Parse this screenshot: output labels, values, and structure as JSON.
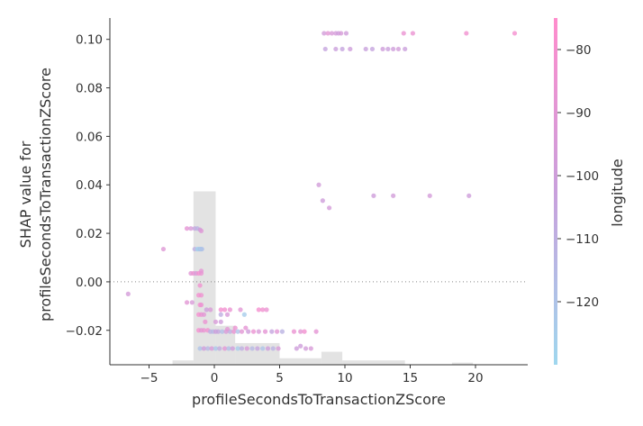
{
  "chart_data": {
    "type": "scatter",
    "xlabel": "profileSecondsToTransactionZScore",
    "ylabel_lines": [
      "SHAP value for",
      "profileSecondsToTransactionZScore"
    ],
    "xlim": [
      -8,
      24
    ],
    "ylim": [
      -0.0342,
      0.1088
    ],
    "x_ticks": [
      -5,
      0,
      5,
      10,
      15,
      20
    ],
    "x_tick_labels": [
      "−5",
      "0",
      "5",
      "10",
      "15",
      "20"
    ],
    "y_ticks": [
      -0.02,
      0.0,
      0.02,
      0.04,
      0.06,
      0.08,
      0.1
    ],
    "y_tick_labels": [
      "−0.02",
      "0.00",
      "0.02",
      "0.04",
      "0.06",
      "0.08",
      "0.10"
    ],
    "reference_line_y": 0.0,
    "colorbar": {
      "label": "longitude",
      "range": [
        -130,
        -75
      ],
      "ticks": [
        -80,
        -90,
        -100,
        -110,
        -120
      ],
      "tick_labels": [
        "−80",
        "−90",
        "−100",
        "−110",
        "−120"
      ],
      "color_low": "#9fd7ee",
      "color_mid": "#c9a0dc",
      "color_high": "#ff8ccc"
    },
    "histogram": {
      "bins": [
        {
          "x0": -3.2,
          "x1": -1.6,
          "count": 2
        },
        {
          "x0": -1.6,
          "x1": 0.1,
          "count": 80
        },
        {
          "x0": 0.1,
          "x1": 1.6,
          "count": 18
        },
        {
          "x0": 1.6,
          "x1": 5.0,
          "count": 10
        },
        {
          "x0": 5.0,
          "x1": 8.2,
          "count": 3
        },
        {
          "x0": 8.2,
          "x1": 9.8,
          "count": 6
        },
        {
          "x0": 9.8,
          "x1": 14.6,
          "count": 2
        },
        {
          "x0": 18.2,
          "x1": 19.8,
          "count": 1
        }
      ]
    },
    "points": [
      {
        "x": -6.6,
        "y": -0.005,
        "lon": -97
      },
      {
        "x": -3.9,
        "y": 0.0135,
        "lon": -92
      },
      {
        "x": -2.1,
        "y": 0.022,
        "lon": -88
      },
      {
        "x": -1.8,
        "y": 0.022,
        "lon": -95
      },
      {
        "x": -1.5,
        "y": 0.022,
        "lon": -105
      },
      {
        "x": -1.3,
        "y": 0.022,
        "lon": -112
      },
      {
        "x": -1.1,
        "y": 0.0215,
        "lon": -100
      },
      {
        "x": -1.0,
        "y": 0.021,
        "lon": -92
      },
      {
        "x": -1.5,
        "y": 0.0135,
        "lon": -110
      },
      {
        "x": -1.3,
        "y": 0.0135,
        "lon": -125
      },
      {
        "x": -1.2,
        "y": 0.0135,
        "lon": -128
      },
      {
        "x": -1.1,
        "y": 0.0135,
        "lon": -115
      },
      {
        "x": -1.05,
        "y": 0.0135,
        "lon": -122
      },
      {
        "x": -1.0,
        "y": 0.0135,
        "lon": -127
      },
      {
        "x": -0.95,
        "y": 0.0135,
        "lon": -118
      },
      {
        "x": -1.8,
        "y": 0.0035,
        "lon": -90
      },
      {
        "x": -1.6,
        "y": 0.0035,
        "lon": -85
      },
      {
        "x": -1.4,
        "y": 0.0035,
        "lon": -95
      },
      {
        "x": -1.2,
        "y": 0.0035,
        "lon": -80
      },
      {
        "x": -1.0,
        "y": 0.0035,
        "lon": -85
      },
      {
        "x": -1.0,
        "y": 0.0045,
        "lon": -88
      },
      {
        "x": -1.1,
        "y": -0.0015,
        "lon": -82
      },
      {
        "x": -1.0,
        "y": -0.0055,
        "lon": -84
      },
      {
        "x": -1.2,
        "y": -0.0055,
        "lon": -81
      },
      {
        "x": -2.1,
        "y": -0.0085,
        "lon": -90
      },
      {
        "x": -1.7,
        "y": -0.0085,
        "lon": -95
      },
      {
        "x": -1.1,
        "y": -0.0095,
        "lon": -80
      },
      {
        "x": -1.0,
        "y": -0.0095,
        "lon": -85
      },
      {
        "x": -0.6,
        "y": -0.0115,
        "lon": -100
      },
      {
        "x": -0.3,
        "y": -0.0115,
        "lon": -94
      },
      {
        "x": 0.5,
        "y": -0.0115,
        "lon": -80
      },
      {
        "x": 0.8,
        "y": -0.0115,
        "lon": -82
      },
      {
        "x": 1.2,
        "y": -0.0115,
        "lon": -85
      },
      {
        "x": 2.0,
        "y": -0.0115,
        "lon": -90
      },
      {
        "x": 3.4,
        "y": -0.0115,
        "lon": -80
      },
      {
        "x": 3.7,
        "y": -0.0115,
        "lon": -82
      },
      {
        "x": 4.0,
        "y": -0.0115,
        "lon": -85
      },
      {
        "x": -1.2,
        "y": -0.0135,
        "lon": -80
      },
      {
        "x": -1.0,
        "y": -0.0135,
        "lon": -85
      },
      {
        "x": -0.8,
        "y": -0.0135,
        "lon": -90
      },
      {
        "x": 0.5,
        "y": -0.0135,
        "lon": -110
      },
      {
        "x": 1.0,
        "y": -0.0135,
        "lon": -95
      },
      {
        "x": 2.3,
        "y": -0.0135,
        "lon": -125
      },
      {
        "x": -0.7,
        "y": -0.0165,
        "lon": -85
      },
      {
        "x": 0.1,
        "y": -0.0165,
        "lon": -95
      },
      {
        "x": 0.5,
        "y": -0.0165,
        "lon": -100
      },
      {
        "x": -1.2,
        "y": -0.02,
        "lon": -80
      },
      {
        "x": -1.0,
        "y": -0.02,
        "lon": -90
      },
      {
        "x": -0.8,
        "y": -0.02,
        "lon": -85
      },
      {
        "x": -0.5,
        "y": -0.02,
        "lon": -82
      },
      {
        "x": -0.3,
        "y": -0.0205,
        "lon": -110
      },
      {
        "x": -0.1,
        "y": -0.0205,
        "lon": -115
      },
      {
        "x": 0.1,
        "y": -0.0205,
        "lon": -100
      },
      {
        "x": 0.3,
        "y": -0.0205,
        "lon": -105
      },
      {
        "x": 0.6,
        "y": -0.0205,
        "lon": -118
      },
      {
        "x": 0.9,
        "y": -0.0205,
        "lon": -95
      },
      {
        "x": 1.2,
        "y": -0.0205,
        "lon": -110
      },
      {
        "x": 1.5,
        "y": -0.0205,
        "lon": -85
      },
      {
        "x": 1.8,
        "y": -0.0205,
        "lon": -120
      },
      {
        "x": 2.1,
        "y": -0.0205,
        "lon": -90
      },
      {
        "x": 2.6,
        "y": -0.0205,
        "lon": -100
      },
      {
        "x": 3.0,
        "y": -0.0205,
        "lon": -85
      },
      {
        "x": 3.4,
        "y": -0.0205,
        "lon": -95
      },
      {
        "x": 3.9,
        "y": -0.0205,
        "lon": -88
      },
      {
        "x": 4.4,
        "y": -0.0205,
        "lon": -105
      },
      {
        "x": 4.8,
        "y": -0.0205,
        "lon": -90
      },
      {
        "x": 5.2,
        "y": -0.0205,
        "lon": -112
      },
      {
        "x": 6.1,
        "y": -0.0205,
        "lon": -85
      },
      {
        "x": 6.6,
        "y": -0.0205,
        "lon": -90
      },
      {
        "x": 6.9,
        "y": -0.0205,
        "lon": -82
      },
      {
        "x": 7.8,
        "y": -0.0205,
        "lon": -88
      },
      {
        "x": 1.6,
        "y": -0.019,
        "lon": -85
      },
      {
        "x": 2.4,
        "y": -0.019,
        "lon": -88
      },
      {
        "x": 1.0,
        "y": -0.0195,
        "lon": -90
      },
      {
        "x": -1.1,
        "y": -0.0275,
        "lon": -120
      },
      {
        "x": -0.8,
        "y": -0.0275,
        "lon": -100
      },
      {
        "x": -0.5,
        "y": -0.0275,
        "lon": -115
      },
      {
        "x": -0.2,
        "y": -0.0275,
        "lon": -95
      },
      {
        "x": 0.1,
        "y": -0.0275,
        "lon": -122
      },
      {
        "x": 0.4,
        "y": -0.0275,
        "lon": -108
      },
      {
        "x": 0.8,
        "y": -0.0275,
        "lon": -90
      },
      {
        "x": 1.1,
        "y": -0.0275,
        "lon": -118
      },
      {
        "x": 1.4,
        "y": -0.0275,
        "lon": -100
      },
      {
        "x": 1.8,
        "y": -0.0275,
        "lon": -125
      },
      {
        "x": 2.1,
        "y": -0.0275,
        "lon": -110
      },
      {
        "x": 2.5,
        "y": -0.0275,
        "lon": -95
      },
      {
        "x": 2.9,
        "y": -0.0275,
        "lon": -115
      },
      {
        "x": 3.3,
        "y": -0.0275,
        "lon": -105
      },
      {
        "x": 3.7,
        "y": -0.0275,
        "lon": -120
      },
      {
        "x": 4.1,
        "y": -0.0275,
        "lon": -100
      },
      {
        "x": 4.5,
        "y": -0.0275,
        "lon": -112
      },
      {
        "x": 4.9,
        "y": -0.0275,
        "lon": -95
      },
      {
        "x": 6.3,
        "y": -0.0275,
        "lon": -100
      },
      {
        "x": 7.0,
        "y": -0.0275,
        "lon": -98
      },
      {
        "x": 7.4,
        "y": -0.0275,
        "lon": -95
      },
      {
        "x": 6.6,
        "y": -0.0265,
        "lon": -100
      },
      {
        "x": 8.0,
        "y": 0.04,
        "lon": -98
      },
      {
        "x": 8.3,
        "y": 0.0335,
        "lon": -100
      },
      {
        "x": 8.8,
        "y": 0.0305,
        "lon": -97
      },
      {
        "x": 12.2,
        "y": 0.0355,
        "lon": -100
      },
      {
        "x": 13.7,
        "y": 0.0355,
        "lon": -98
      },
      {
        "x": 16.5,
        "y": 0.0355,
        "lon": -97
      },
      {
        "x": 19.5,
        "y": 0.0355,
        "lon": -100
      },
      {
        "x": 8.4,
        "y": 0.1025,
        "lon": -98
      },
      {
        "x": 8.7,
        "y": 0.1025,
        "lon": -90
      },
      {
        "x": 9.0,
        "y": 0.1025,
        "lon": -95
      },
      {
        "x": 9.3,
        "y": 0.1025,
        "lon": -97
      },
      {
        "x": 9.5,
        "y": 0.1025,
        "lon": -100
      },
      {
        "x": 9.7,
        "y": 0.1025,
        "lon": -96
      },
      {
        "x": 10.1,
        "y": 0.1025,
        "lon": -99
      },
      {
        "x": 14.5,
        "y": 0.1025,
        "lon": -85
      },
      {
        "x": 15.2,
        "y": 0.1025,
        "lon": -85
      },
      {
        "x": 19.3,
        "y": 0.1025,
        "lon": -82
      },
      {
        "x": 23.0,
        "y": 0.1025,
        "lon": -80
      },
      {
        "x": 8.5,
        "y": 0.096,
        "lon": -105
      },
      {
        "x": 9.3,
        "y": 0.096,
        "lon": -102
      },
      {
        "x": 9.8,
        "y": 0.096,
        "lon": -105
      },
      {
        "x": 10.4,
        "y": 0.096,
        "lon": -100
      },
      {
        "x": 11.6,
        "y": 0.096,
        "lon": -103
      },
      {
        "x": 12.1,
        "y": 0.096,
        "lon": -105
      },
      {
        "x": 12.9,
        "y": 0.096,
        "lon": -100
      },
      {
        "x": 13.3,
        "y": 0.096,
        "lon": -102
      },
      {
        "x": 13.7,
        "y": 0.096,
        "lon": -100
      },
      {
        "x": 14.1,
        "y": 0.096,
        "lon": -98
      },
      {
        "x": 14.6,
        "y": 0.096,
        "lon": -102
      }
    ]
  }
}
